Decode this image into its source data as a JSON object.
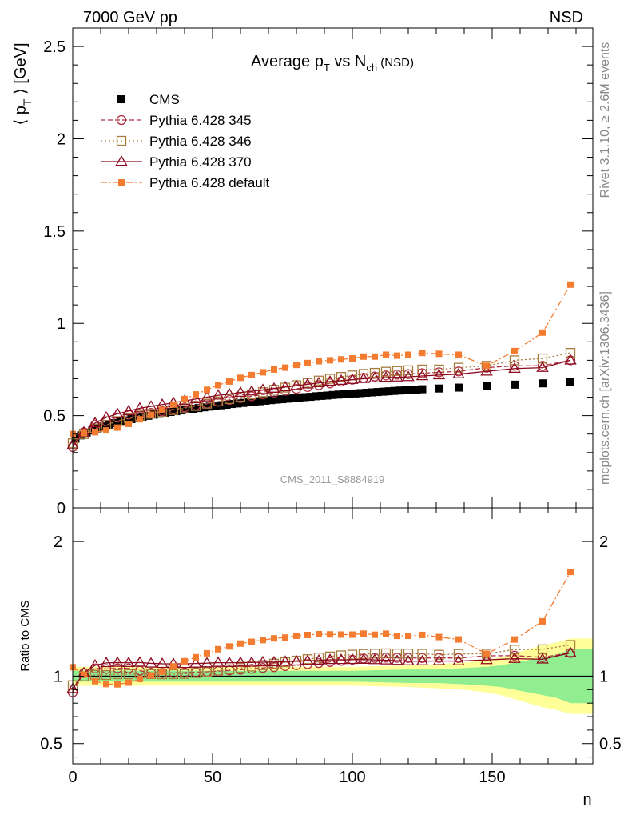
{
  "header": {
    "left": "7000 GeV pp",
    "right": "NSD"
  },
  "side": {
    "rivet": "Rivet 3.1.10, ≥ 2.6M events",
    "mcplots": "mcplots.cern.ch [arXiv:1306.3436]"
  },
  "chart_data": [
    {
      "type": "scatter",
      "panel": "main",
      "title": "Average p_T vs N_ch (NSD)",
      "title_parts": {
        "a": "Average p",
        "b": "T",
        "c": " vs N",
        "d": "ch",
        "e": " (NSD)"
      },
      "ylabel": "⟨ p_T ⟩ [GeV]",
      "ylabel_parts": {
        "a": "⟨ p",
        "b": "T",
        "c": " ⟩ [GeV]"
      },
      "xlim": [
        0,
        186
      ],
      "ylim": [
        0,
        2.6
      ],
      "yticks": [
        "0",
        "0.5",
        "1",
        "1.5",
        "2",
        "2.5"
      ],
      "watermark": "CMS_2011_S8884919",
      "legend_position": "top-left",
      "reference_series": {
        "name": "CMS",
        "x": [
          1,
          3,
          5,
          7,
          9,
          11,
          13,
          15,
          17,
          19,
          21,
          23,
          25,
          27,
          29,
          31,
          33,
          35,
          37,
          39,
          41,
          43,
          45,
          47,
          49,
          51,
          53,
          55,
          57,
          59,
          61,
          63,
          65,
          67,
          69,
          71,
          73,
          75,
          77,
          79,
          81,
          83,
          85,
          87,
          89,
          91,
          93,
          95,
          97,
          99,
          101,
          103,
          105,
          107,
          109,
          111,
          113,
          115,
          117,
          119,
          121,
          123,
          125,
          131,
          138,
          148,
          158,
          168,
          178
        ],
        "y": [
          0.375,
          0.393,
          0.408,
          0.42,
          0.431,
          0.441,
          0.451,
          0.459,
          0.467,
          0.474,
          0.481,
          0.487,
          0.493,
          0.499,
          0.505,
          0.51,
          0.515,
          0.52,
          0.524,
          0.529,
          0.533,
          0.537,
          0.541,
          0.545,
          0.549,
          0.552,
          0.556,
          0.559,
          0.563,
          0.566,
          0.569,
          0.572,
          0.575,
          0.578,
          0.581,
          0.584,
          0.587,
          0.589,
          0.592,
          0.595,
          0.597,
          0.6,
          0.602,
          0.605,
          0.607,
          0.609,
          0.612,
          0.614,
          0.616,
          0.618,
          0.62,
          0.622,
          0.624,
          0.626,
          0.628,
          0.63,
          0.632,
          0.634,
          0.636,
          0.638,
          0.639,
          0.641,
          0.643,
          0.647,
          0.652,
          0.66,
          0.668,
          0.675,
          0.682
        ]
      },
      "series": [
        {
          "name": "Pythia 6.428 345",
          "x": [
            0,
            4,
            8,
            12,
            16,
            20,
            24,
            28,
            32,
            36,
            40,
            44,
            48,
            52,
            56,
            60,
            64,
            68,
            72,
            76,
            80,
            84,
            88,
            92,
            96,
            100,
            104,
            108,
            112,
            116,
            120,
            125,
            131,
            138,
            148,
            158,
            168,
            178
          ],
          "y": [
            0.33,
            0.41,
            0.45,
            0.47,
            0.49,
            0.505,
            0.51,
            0.515,
            0.525,
            0.535,
            0.545,
            0.555,
            0.565,
            0.575,
            0.585,
            0.595,
            0.605,
            0.615,
            0.625,
            0.635,
            0.645,
            0.655,
            0.665,
            0.675,
            0.685,
            0.695,
            0.705,
            0.712,
            0.718,
            0.722,
            0.725,
            0.73,
            0.735,
            0.74,
            0.76,
            0.77,
            0.77,
            0.8
          ]
        },
        {
          "name": "Pythia 6.428 346",
          "x": [
            0,
            4,
            8,
            12,
            16,
            20,
            24,
            28,
            32,
            36,
            40,
            44,
            48,
            52,
            56,
            60,
            64,
            68,
            72,
            76,
            80,
            84,
            88,
            92,
            96,
            100,
            104,
            108,
            112,
            116,
            120,
            125,
            131,
            138,
            148,
            158,
            168,
            178
          ],
          "y": [
            0.35,
            0.4,
            0.43,
            0.45,
            0.47,
            0.485,
            0.5,
            0.51,
            0.52,
            0.53,
            0.54,
            0.552,
            0.565,
            0.577,
            0.59,
            0.602,
            0.615,
            0.627,
            0.64,
            0.652,
            0.665,
            0.677,
            0.69,
            0.7,
            0.71,
            0.718,
            0.726,
            0.732,
            0.738,
            0.742,
            0.746,
            0.75,
            0.75,
            0.76,
            0.77,
            0.8,
            0.81,
            0.84
          ]
        },
        {
          "name": "Pythia 6.428 370",
          "x": [
            0,
            4,
            8,
            12,
            16,
            20,
            24,
            28,
            32,
            36,
            40,
            44,
            48,
            52,
            56,
            60,
            64,
            68,
            72,
            76,
            80,
            84,
            88,
            92,
            96,
            100,
            104,
            108,
            112,
            116,
            120,
            125,
            131,
            138,
            148,
            158,
            168,
            178
          ],
          "y": [
            0.34,
            0.41,
            0.46,
            0.49,
            0.51,
            0.525,
            0.54,
            0.55,
            0.56,
            0.57,
            0.58,
            0.59,
            0.6,
            0.61,
            0.617,
            0.625,
            0.632,
            0.64,
            0.647,
            0.655,
            0.662,
            0.67,
            0.677,
            0.685,
            0.69,
            0.695,
            0.7,
            0.703,
            0.706,
            0.708,
            0.71,
            0.715,
            0.72,
            0.725,
            0.74,
            0.755,
            0.76,
            0.8
          ]
        },
        {
          "name": "Pythia 6.428 default",
          "x": [
            0,
            4,
            8,
            12,
            16,
            20,
            24,
            28,
            32,
            36,
            40,
            44,
            48,
            52,
            56,
            60,
            64,
            68,
            72,
            76,
            80,
            84,
            88,
            92,
            96,
            100,
            104,
            108,
            112,
            116,
            120,
            125,
            131,
            138,
            148,
            158,
            168,
            178
          ],
          "y": [
            0.4,
            0.405,
            0.41,
            0.42,
            0.435,
            0.455,
            0.48,
            0.505,
            0.53,
            0.56,
            0.59,
            0.615,
            0.64,
            0.665,
            0.685,
            0.705,
            0.72,
            0.735,
            0.75,
            0.76,
            0.775,
            0.785,
            0.795,
            0.8,
            0.805,
            0.81,
            0.82,
            0.82,
            0.83,
            0.825,
            0.83,
            0.84,
            0.835,
            0.83,
            0.77,
            0.85,
            0.95,
            1.21
          ]
        }
      ]
    },
    {
      "type": "scatter",
      "panel": "ratio",
      "ylabel": "Ratio to CMS",
      "xlabel": "n",
      "xlim": [
        0,
        186
      ],
      "ylim": [
        0.35,
        2.25
      ],
      "xticks": [
        "0",
        "50",
        "100",
        "150"
      ],
      "yticks": [
        "0.5",
        "1",
        "2"
      ],
      "reference_line": 1,
      "uncertainty_band": {
        "x": [
          0,
          20,
          40,
          60,
          80,
          100,
          120,
          130,
          140,
          148,
          153,
          158,
          163,
          168,
          173,
          178,
          186
        ],
        "inner": [
          0.04,
          0.04,
          0.04,
          0.04,
          0.04,
          0.04,
          0.05,
          0.05,
          0.06,
          0.07,
          0.08,
          0.1,
          0.12,
          0.14,
          0.16,
          0.2,
          0.2
        ],
        "outer": [
          0.07,
          0.07,
          0.07,
          0.07,
          0.07,
          0.07,
          0.08,
          0.09,
          0.1,
          0.12,
          0.14,
          0.17,
          0.2,
          0.23,
          0.25,
          0.28,
          0.28
        ]
      }
    }
  ],
  "colors": {
    "cms": "#000000",
    "pythia_345": "#b03040",
    "pythia_346": "#a87c3c",
    "pythia_370": "#8b0a1e",
    "pythia_default": "#f47c30",
    "band_inner": "#90ee90",
    "band_outer": "#ffff99"
  }
}
